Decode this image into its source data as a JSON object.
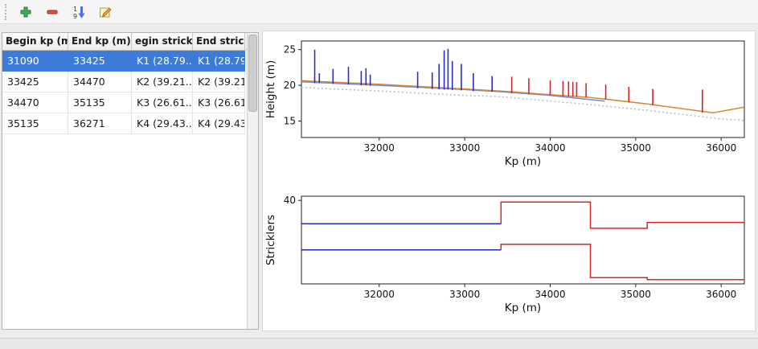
{
  "colors": {
    "window_bg": "#ececec",
    "selection": "#3d7bd8",
    "selection_text": "#ffffff"
  },
  "toolbar": {
    "buttons": [
      {
        "name": "add",
        "icon": "plus-icon"
      },
      {
        "name": "remove",
        "icon": "minus-icon"
      },
      {
        "name": "sort",
        "icon": "sort-numeric-down-icon"
      },
      {
        "name": "edit",
        "icon": "edit-pencil-icon"
      }
    ],
    "sort_digits": [
      "1",
      "9"
    ]
  },
  "table": {
    "headers": [
      "Begin kp (m)",
      "End kp (m)",
      "egin strickle",
      "End strickler"
    ],
    "rows": [
      {
        "cells": [
          "31090",
          "33425",
          "K1 (28.79...",
          "K1 (28.79..."
        ],
        "selected": true
      },
      {
        "cells": [
          "33425",
          "34470",
          "K2 (39.21...",
          "K2 (39.21..."
        ],
        "selected": false
      },
      {
        "cells": [
          "34470",
          "35135",
          "K3 (26.61...",
          "K3 (26.61..."
        ],
        "selected": false
      },
      {
        "cells": [
          "35135",
          "36271",
          "K4 (29.43...",
          "K4 (29.43..."
        ],
        "selected": false
      }
    ]
  },
  "chart_data": [
    {
      "type": "line",
      "title": "",
      "xlabel": "Kp (m)",
      "ylabel": "Height (m)",
      "xlim": [
        31090,
        36271
      ],
      "ylim": [
        12.7,
        26.2
      ],
      "xticks": [
        32000,
        33000,
        34000,
        35000,
        36000
      ],
      "yticks": [
        15,
        20,
        25
      ],
      "series": [
        {
          "name": "bed-profile-dotted",
          "color": "#bcbcc4",
          "width": 1.6,
          "dash": "2 3",
          "points": [
            [
              31090,
              19.7
            ],
            [
              32000,
              19.2
            ],
            [
              33000,
              18.6
            ],
            [
              33425,
              18.4
            ],
            [
              34470,
              17.3
            ],
            [
              35135,
              16.5
            ],
            [
              36000,
              15.3
            ],
            [
              36271,
              15.1
            ]
          ]
        },
        {
          "name": "water-level-blue",
          "color": "#6b8bd4",
          "width": 1.5,
          "dash": "",
          "points": [
            [
              31090,
              20.5
            ],
            [
              32000,
              20.0
            ],
            [
              33000,
              19.4
            ],
            [
              33425,
              19.1
            ],
            [
              34000,
              18.6
            ],
            [
              34640,
              17.8
            ]
          ]
        },
        {
          "name": "bank-level-orange",
          "color": "#d8862c",
          "width": 1.5,
          "dash": "",
          "points": [
            [
              31090,
              20.65
            ],
            [
              32000,
              20.15
            ],
            [
              33000,
              19.5
            ],
            [
              33425,
              19.2
            ],
            [
              34000,
              18.7
            ],
            [
              34470,
              18.3
            ],
            [
              35135,
              17.4
            ],
            [
              35900,
              16.15
            ],
            [
              36271,
              16.95
            ]
          ]
        }
      ],
      "vlines": [
        {
          "x": 31245,
          "y0": 20.3,
          "y1": 25.0,
          "color": "#2d2dc0"
        },
        {
          "x": 31300,
          "y0": 20.3,
          "y1": 21.7,
          "color": "#2d2dc0"
        },
        {
          "x": 31460,
          "y0": 20.2,
          "y1": 22.3,
          "color": "#2d2dc0"
        },
        {
          "x": 31640,
          "y0": 20.1,
          "y1": 22.6,
          "color": "#2d2dc0"
        },
        {
          "x": 31790,
          "y0": 20.0,
          "y1": 22.0,
          "color": "#2d2dc0"
        },
        {
          "x": 31845,
          "y0": 20.0,
          "y1": 22.4,
          "color": "#2d2dc0"
        },
        {
          "x": 31895,
          "y0": 19.95,
          "y1": 21.5,
          "color": "#2d2dc0"
        },
        {
          "x": 32450,
          "y0": 19.6,
          "y1": 21.9,
          "color": "#2d2dc0"
        },
        {
          "x": 32620,
          "y0": 19.5,
          "y1": 21.8,
          "color": "#2d2dc0"
        },
        {
          "x": 32700,
          "y0": 19.45,
          "y1": 23.0,
          "color": "#2d2dc0"
        },
        {
          "x": 32760,
          "y0": 19.4,
          "y1": 24.9,
          "color": "#2d2dc0"
        },
        {
          "x": 32805,
          "y0": 19.4,
          "y1": 25.1,
          "color": "#2d2dc0"
        },
        {
          "x": 32855,
          "y0": 19.35,
          "y1": 23.4,
          "color": "#2d2dc0"
        },
        {
          "x": 32960,
          "y0": 19.3,
          "y1": 23.0,
          "color": "#2d2dc0"
        },
        {
          "x": 33100,
          "y0": 19.2,
          "y1": 21.7,
          "color": "#2d2dc0"
        },
        {
          "x": 33320,
          "y0": 19.1,
          "y1": 21.3,
          "color": "#2d2dc0"
        },
        {
          "x": 33550,
          "y0": 18.9,
          "y1": 21.2,
          "color": "#d42525"
        },
        {
          "x": 33750,
          "y0": 18.8,
          "y1": 21.0,
          "color": "#d42525"
        },
        {
          "x": 34000,
          "y0": 18.6,
          "y1": 20.7,
          "color": "#d42525"
        },
        {
          "x": 34150,
          "y0": 18.5,
          "y1": 20.6,
          "color": "#d42525"
        },
        {
          "x": 34215,
          "y0": 18.45,
          "y1": 20.55,
          "color": "#d42525"
        },
        {
          "x": 34265,
          "y0": 18.4,
          "y1": 20.5,
          "color": "#d42525"
        },
        {
          "x": 34310,
          "y0": 18.4,
          "y1": 20.45,
          "color": "#d42525"
        },
        {
          "x": 34420,
          "y0": 18.3,
          "y1": 20.3,
          "color": "#d42525"
        },
        {
          "x": 34650,
          "y0": 18.0,
          "y1": 20.1,
          "color": "#d42525"
        },
        {
          "x": 34920,
          "y0": 17.6,
          "y1": 19.8,
          "color": "#d42525"
        },
        {
          "x": 35200,
          "y0": 17.2,
          "y1": 19.5,
          "color": "#d42525"
        },
        {
          "x": 35780,
          "y0": 16.2,
          "y1": 19.4,
          "color": "#d42525"
        }
      ]
    },
    {
      "type": "step",
      "title": "",
      "xlabel": "Kp (m)",
      "ylabel": "Stricklers",
      "xlim": [
        31090,
        36271
      ],
      "ylim": [
        0,
        42
      ],
      "xticks": [
        32000,
        33000,
        34000,
        35000,
        36000
      ],
      "yticks": [
        40
      ],
      "series": [
        {
          "name": "major-stricklers-selected",
          "color": "#2424bd",
          "width": 1.5,
          "dash": "",
          "points": [
            [
              31090,
              28.79
            ],
            [
              33425,
              28.79
            ]
          ]
        },
        {
          "name": "major-stricklers",
          "color": "#dd2222",
          "width": 1.5,
          "dash": "",
          "points": [
            [
              33425,
              28.79
            ],
            [
              33425,
              39.21
            ],
            [
              34470,
              39.21
            ],
            [
              34470,
              26.61
            ],
            [
              35135,
              26.61
            ],
            [
              35135,
              29.43
            ],
            [
              36271,
              29.43
            ]
          ]
        },
        {
          "name": "minor-stricklers-selected",
          "color": "#2424bd",
          "width": 1.5,
          "dash": "",
          "points": [
            [
              31090,
              16.3
            ],
            [
              33425,
              16.3
            ]
          ]
        },
        {
          "name": "minor-stricklers",
          "color": "#dd2222",
          "width": 1.5,
          "dash": "",
          "points": [
            [
              33425,
              16.3
            ],
            [
              33425,
              19.0
            ],
            [
              34470,
              19.0
            ],
            [
              34470,
              3.0
            ],
            [
              35135,
              3.0
            ],
            [
              35135,
              2.0
            ],
            [
              36271,
              2.0
            ]
          ]
        }
      ]
    }
  ]
}
